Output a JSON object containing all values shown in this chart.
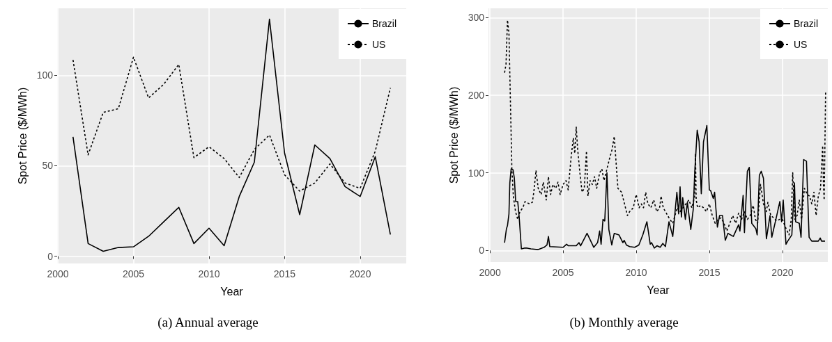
{
  "chart_data": [
    {
      "type": "line",
      "xlabel": "Year",
      "ylabel": "Spot Price ($/MWh)",
      "annotations": [
        "(a) Annual average"
      ],
      "x": [
        2001,
        2002,
        2003,
        2004,
        2005,
        2006,
        2007,
        2008,
        2009,
        2010,
        2011,
        2012,
        2013,
        2014,
        2015,
        2016,
        2017,
        2018,
        2019,
        2020,
        2021,
        2022
      ],
      "series": [
        {
          "name": "Brazil",
          "color": "#000000",
          "line_style": "solid",
          "values": [
            66,
            7,
            2.7,
            4.8,
            5.2,
            11,
            19,
            27,
            7,
            15.5,
            5.8,
            33,
            52,
            131,
            57,
            23,
            61.5,
            54,
            38.5,
            33,
            55,
            12
          ]
        },
        {
          "name": "US",
          "color": "#000000",
          "line_style": "dotted",
          "values": [
            108.5,
            56,
            79.5,
            81.5,
            110,
            87.5,
            95,
            106,
            54.5,
            60.5,
            54,
            43.5,
            59,
            67,
            45,
            36,
            40.5,
            51,
            40.5,
            37.5,
            58,
            93
          ]
        }
      ],
      "xlim": [
        1999.95,
        2023.05
      ],
      "ylim": [
        -4,
        137
      ],
      "xticks": [
        2000,
        2005,
        2010,
        2015,
        2020
      ],
      "yticks": [
        0,
        50,
        100
      ],
      "grid": true,
      "legend": "top right",
      "marker": "none"
    },
    {
      "type": "line",
      "xlabel": "Year",
      "ylabel": "Spot Price ($/MWh)",
      "annotations": [
        "(b) Monthly average"
      ],
      "series": [
        {
          "name": "Brazil",
          "color": "#000000",
          "line_style": "solid",
          "x": [
            2001.0,
            2001.13,
            2001.2,
            2001.3,
            2001.36,
            2001.45,
            2001.58,
            2001.67,
            2001.76,
            2001.9,
            2002.0,
            2002.15,
            2002.35,
            2002.55,
            2002.8,
            2003.27,
            2003.7,
            2003.9,
            2004.0,
            2004.09,
            2005.0,
            2005.24,
            2005.36,
            2005.9,
            2006.09,
            2006.2,
            2006.64,
            2007.1,
            2007.36,
            2007.5,
            2007.6,
            2007.73,
            2007.85,
            2008.0,
            2008.13,
            2008.33,
            2008.5,
            2008.82,
            2009.09,
            2009.18,
            2009.33,
            2009.55,
            2009.9,
            2010.18,
            2010.45,
            2010.73,
            2010.96,
            2011.05,
            2011.24,
            2011.42,
            2011.64,
            2011.82,
            2012.0,
            2012.24,
            2012.5,
            2012.78,
            2012.9,
            2013.0,
            2013.09,
            2013.18,
            2013.36,
            2013.5,
            2013.73,
            2013.9,
            2014.0,
            2014.17,
            2014.3,
            2014.45,
            2014.6,
            2014.83,
            2015.0,
            2015.09,
            2015.27,
            2015.36,
            2015.55,
            2015.7,
            2015.9,
            2016.09,
            2016.27,
            2016.64,
            2017.0,
            2017.09,
            2017.31,
            2017.4,
            2017.6,
            2017.73,
            2017.9,
            2018.18,
            2018.27,
            2018.42,
            2018.55,
            2018.7,
            2018.9,
            2019.15,
            2019.27,
            2019.55,
            2019.82,
            2019.94,
            2020.05,
            2020.24,
            2020.36,
            2020.64,
            2020.82,
            2020.9,
            2021.15,
            2021.27,
            2021.45,
            2021.64,
            2021.82,
            2022.0,
            2022.45,
            2022.58,
            2022.67,
            2022.91
          ],
          "values": [
            10,
            28,
            32,
            47,
            87,
            105,
            104,
            93,
            63,
            63,
            43,
            2,
            3,
            3,
            2,
            1,
            4,
            7,
            18,
            5,
            4,
            8,
            6,
            6,
            10,
            6,
            22,
            4,
            10,
            25,
            8,
            40,
            38,
            100,
            27,
            7,
            22,
            20,
            10,
            13,
            7,
            5,
            4,
            7,
            20,
            37,
            8,
            10,
            3,
            6,
            4,
            9,
            5,
            37,
            18,
            75,
            47,
            82,
            43,
            68,
            40,
            62,
            27,
            53,
            100,
            155,
            140,
            73,
            140,
            161,
            78,
            77,
            67,
            75,
            30,
            45,
            45,
            13,
            22,
            18,
            33,
            25,
            71,
            23,
            102,
            107,
            35,
            28,
            20,
            97,
            102,
            93,
            15,
            45,
            17,
            40,
            63,
            37,
            65,
            8,
            12,
            20,
            87,
            37,
            35,
            17,
            117,
            115,
            17,
            12,
            12,
            16,
            12,
            12
          ]
        },
        {
          "name": "US",
          "color": "#000000",
          "line_style": "dotted",
          "x": [
            2001.0,
            2001.1,
            2001.2,
            2001.3,
            2001.5,
            2001.6,
            2001.75,
            2001.9,
            2002.05,
            2002.25,
            2002.4,
            2002.7,
            2002.9,
            2003.0,
            2003.15,
            2003.3,
            2003.5,
            2003.65,
            2003.85,
            2004.0,
            2004.15,
            2004.3,
            2004.5,
            2004.65,
            2004.8,
            2005.0,
            2005.2,
            2005.35,
            2005.55,
            2005.7,
            2005.8,
            2005.9,
            2006.0,
            2006.15,
            2006.3,
            2006.45,
            2006.6,
            2006.7,
            2006.85,
            2007.0,
            2007.15,
            2007.3,
            2007.5,
            2007.65,
            2007.8,
            2008.0,
            2008.2,
            2008.35,
            2008.5,
            2008.6,
            2008.75,
            2009.0,
            2009.2,
            2009.4,
            2009.55,
            2009.8,
            2010.0,
            2010.2,
            2010.35,
            2010.5,
            2010.65,
            2010.8,
            2011.0,
            2011.2,
            2011.4,
            2011.6,
            2011.7,
            2011.85,
            2012.0,
            2012.3,
            2012.5,
            2012.8,
            2013.0,
            2013.2,
            2013.4,
            2013.6,
            2013.8,
            2014.0,
            2014.05,
            2014.1,
            2014.2,
            2014.4,
            2014.6,
            2014.8,
            2015.0,
            2015.2,
            2015.4,
            2015.6,
            2015.8,
            2016.0,
            2016.2,
            2016.4,
            2016.6,
            2016.8,
            2017.0,
            2017.2,
            2017.4,
            2017.6,
            2017.8,
            2018.0,
            2018.15,
            2018.3,
            2018.5,
            2018.7,
            2018.9,
            2019.0,
            2019.2,
            2019.4,
            2019.6,
            2019.8,
            2020.0,
            2020.2,
            2020.45,
            2020.6,
            2020.7,
            2020.85,
            2021.0,
            2021.15,
            2021.3,
            2021.5,
            2021.7,
            2021.85,
            2022.0,
            2022.15,
            2022.3,
            2022.45,
            2022.6,
            2022.75,
            2022.8,
            2022.85,
            2022.95
          ],
          "values": [
            229,
            240,
            297,
            280,
            105,
            70,
            50,
            40,
            50,
            55,
            63,
            60,
            62,
            75,
            103,
            80,
            72,
            88,
            65,
            95,
            72,
            85,
            80,
            88,
            72,
            85,
            90,
            78,
            120,
            145,
            125,
            159,
            130,
            100,
            75,
            80,
            128,
            70,
            90,
            85,
            95,
            80,
            100,
            105,
            90,
            105,
            120,
            130,
            147,
            120,
            80,
            75,
            60,
            45,
            50,
            55,
            72,
            55,
            60,
            55,
            75,
            60,
            55,
            65,
            50,
            55,
            70,
            55,
            50,
            40,
            35,
            55,
            50,
            55,
            60,
            65,
            55,
            70,
            125,
            65,
            55,
            58,
            55,
            50,
            60,
            45,
            35,
            40,
            42,
            35,
            25,
            35,
            45,
            35,
            48,
            40,
            50,
            40,
            45,
            58,
            40,
            35,
            85,
            60,
            50,
            62,
            45,
            42,
            38,
            40,
            40,
            30,
            20,
            40,
            100,
            40,
            45,
            65,
            40,
            80,
            72,
            70,
            60,
            75,
            45,
            70,
            80,
            135,
            85,
            65,
            204
          ]
        }
      ],
      "xlim": [
        1999.9,
        2023.1
      ],
      "ylim": [
        -15,
        312
      ],
      "xticks": [
        2000,
        2005,
        2010,
        2015,
        2020
      ],
      "yticks": [
        0,
        100,
        200,
        300
      ],
      "grid": true,
      "legend": "top right",
      "marker": "none"
    }
  ]
}
